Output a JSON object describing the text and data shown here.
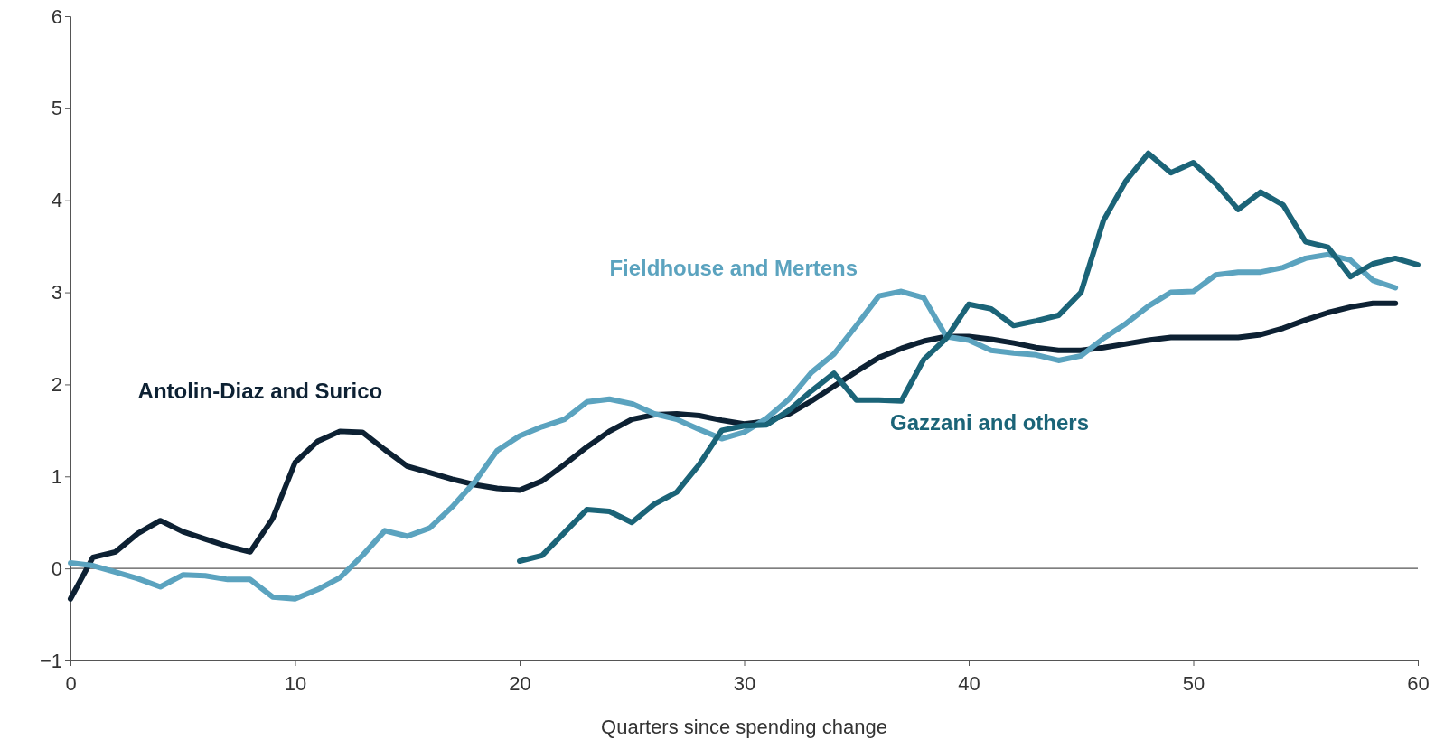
{
  "chart_data": {
    "type": "line",
    "xlabel": "Quarters since spending change",
    "x": [
      0,
      1,
      2,
      3,
      4,
      5,
      6,
      7,
      8,
      9,
      10,
      11,
      12,
      13,
      14,
      15,
      16,
      17,
      18,
      19,
      20,
      21,
      22,
      23,
      24,
      25,
      26,
      27,
      28,
      29,
      30,
      31,
      32,
      33,
      34,
      35,
      36,
      37,
      38,
      39,
      40,
      41,
      42,
      43,
      44,
      45,
      46,
      47,
      48,
      49,
      50,
      51,
      52,
      53,
      54,
      55,
      56,
      57,
      58,
      59
    ],
    "xlim": [
      0,
      60
    ],
    "xticks": [
      0,
      10,
      20,
      30,
      40,
      50,
      60
    ],
    "ylim": [
      -1,
      6
    ],
    "yticks": [
      -1,
      0,
      1,
      2,
      3,
      4,
      5,
      6
    ],
    "ref_lines": [
      {
        "axis": "y",
        "value": 0,
        "color": "#555555"
      }
    ],
    "series": [
      {
        "name": "Antolin-Diaz and Surico",
        "color": "#0d2133",
        "values": [
          -0.33,
          0.12,
          0.18,
          0.38,
          0.52,
          0.4,
          0.32,
          0.24,
          0.18,
          0.54,
          1.15,
          1.38,
          1.49,
          1.48,
          1.29,
          1.11,
          1.04,
          0.97,
          0.91,
          0.87,
          0.85,
          0.95,
          1.13,
          1.32,
          1.49,
          1.62,
          1.67,
          1.68,
          1.66,
          1.61,
          1.57,
          1.6,
          1.68,
          1.82,
          1.98,
          2.14,
          2.29,
          2.39,
          2.47,
          2.52,
          2.52,
          2.49,
          2.45,
          2.4,
          2.37,
          2.37,
          2.4,
          2.44,
          2.48,
          2.51,
          2.51,
          2.51,
          2.51,
          2.54,
          2.61,
          2.7,
          2.78,
          2.84,
          2.88,
          2.88
        ]
      },
      {
        "name": "Fieldhouse and Mertens",
        "color": "#5ba3bf",
        "values": [
          0.06,
          0.03,
          -0.04,
          -0.11,
          -0.2,
          -0.07,
          -0.08,
          -0.12,
          -0.12,
          -0.31,
          -0.33,
          -0.23,
          -0.1,
          0.14,
          0.41,
          0.35,
          0.44,
          0.67,
          0.94,
          1.28,
          1.44,
          1.54,
          1.62,
          1.81,
          1.84,
          1.79,
          1.68,
          1.62,
          1.51,
          1.41,
          1.48,
          1.63,
          1.84,
          2.13,
          2.33,
          2.64,
          2.96,
          3.01,
          2.94,
          2.52,
          2.48,
          2.37,
          2.34,
          2.32,
          2.26,
          2.31,
          2.5,
          2.66,
          2.85,
          3.0,
          3.01,
          3.19,
          3.22,
          3.22,
          3.27,
          3.37,
          3.41,
          3.35,
          3.13,
          3.05
        ]
      },
      {
        "name": "Gazzani and others",
        "color": "#1b6478",
        "x": [
          20,
          21,
          22,
          23,
          24,
          25,
          26,
          27,
          28,
          29,
          30,
          31,
          32,
          33,
          34,
          35,
          36,
          37,
          38,
          39,
          40,
          41,
          42,
          43,
          44,
          45,
          46,
          47,
          48,
          49,
          50,
          51,
          52,
          53,
          54,
          55,
          56,
          57,
          58,
          59,
          60
        ],
        "values": [
          0.08,
          0.14,
          0.39,
          0.64,
          0.62,
          0.5,
          0.7,
          0.83,
          1.13,
          1.5,
          1.55,
          1.56,
          1.72,
          1.93,
          2.12,
          1.83,
          1.83,
          1.82,
          2.27,
          2.5,
          2.87,
          2.82,
          2.64,
          2.69,
          2.75,
          3.0,
          3.78,
          4.21,
          4.51,
          4.3,
          4.41,
          4.18,
          3.9,
          4.09,
          3.95,
          3.55,
          3.49,
          3.17,
          3.31,
          3.37,
          3.3
        ]
      }
    ],
    "legend": false,
    "grid": false,
    "marker": "none",
    "line_style": "solid"
  }
}
